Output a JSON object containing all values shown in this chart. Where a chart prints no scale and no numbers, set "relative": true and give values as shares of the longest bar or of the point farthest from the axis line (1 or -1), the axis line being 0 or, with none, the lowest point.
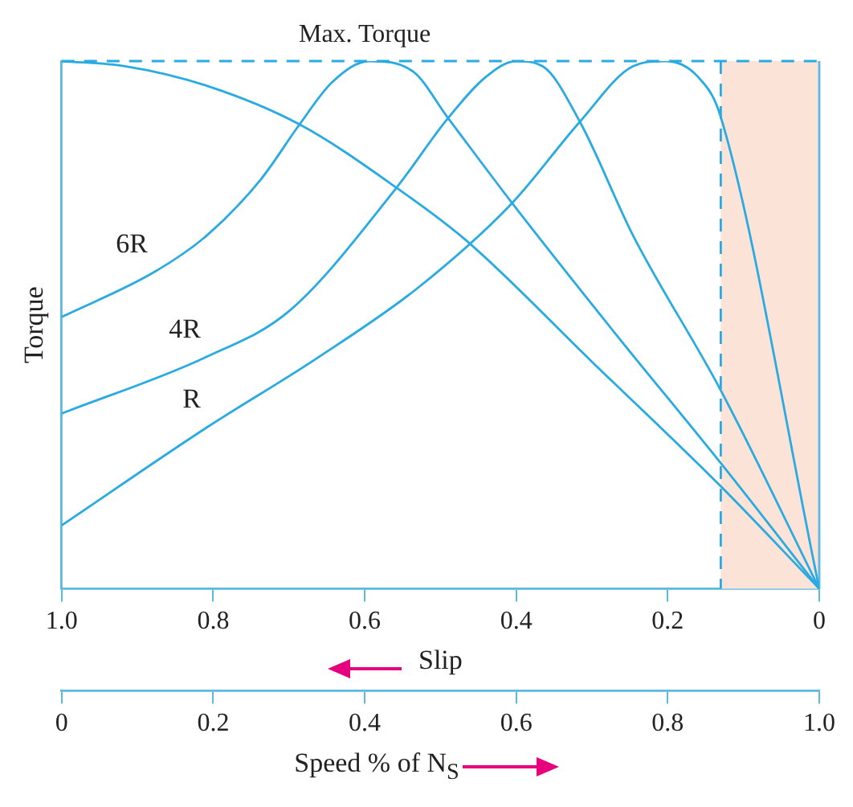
{
  "chart_data": {
    "type": "line",
    "relative": true,
    "ylabel": "Torque",
    "xlabel": "Slip",
    "x2label": "Speed % of N$_{S}$",
    "xlim": [
      1.0,
      0
    ],
    "xticks": [
      {
        "value": 1.0,
        "label": "1.0"
      },
      0.8,
      0.6,
      0.4,
      0.2,
      0
    ],
    "x2lim": [
      0,
      1.0
    ],
    "x2ticks": [
      0,
      0.2,
      0.4,
      0.6,
      0.8,
      {
        "value": 1.0,
        "label": "1.0"
      }
    ],
    "grid": false,
    "legend": false,
    "marker": "none",
    "line_style": "solid",
    "ref_lines": [
      {
        "axis": "y",
        "value": 1,
        "label": "Max. Torque",
        "color": "#29abe2",
        "line_style": "dashed"
      },
      {
        "axis": "x",
        "value": 0.13,
        "label": null,
        "color": "#29abe2",
        "line_style": "dashed"
      }
    ],
    "bands": [
      {
        "axis": "x",
        "from": 0.13,
        "to": 0,
        "label": null,
        "color": "#fbe3d8"
      }
    ],
    "series": [
      {
        "color": "#29abe2",
        "x": [
          1.0,
          0.915,
          0.808,
          0.686,
          0.558,
          0.466,
          0.3,
          0.13,
          0
        ],
        "values": [
          1,
          0.99,
          0.953,
          0.88,
          0.76,
          0.66,
          0.43,
          0.194,
          0
        ]
      },
      {
        "name": "6R",
        "color": "#29abe2",
        "x": [
          1.0,
          0.878,
          0.808,
          0.737,
          0.686,
          0.643,
          0.594,
          0.536,
          0.491,
          0.406,
          0.27,
          0.13,
          0
        ],
        "values": [
          0.515,
          0.6,
          0.67,
          0.776,
          0.88,
          0.96,
          1.0,
          0.98,
          0.894,
          0.732,
          0.485,
          0.238,
          0
        ]
      },
      {
        "name": "4R",
        "color": "#29abe2",
        "x": [
          1.0,
          0.808,
          0.7,
          0.558,
          0.491,
          0.44,
          0.4,
          0.365,
          0.316,
          0.246,
          0.13,
          0
        ],
        "values": [
          0.332,
          0.44,
          0.526,
          0.76,
          0.89,
          0.97,
          1.0,
          0.99,
          0.885,
          0.67,
          0.376,
          0
        ]
      },
      {
        "name": "R",
        "color": "#29abe2",
        "x": [
          1.0,
          0.808,
          0.665,
          0.53,
          0.406,
          0.316,
          0.246,
          0.203,
          0.16,
          0.13,
          0
        ],
        "values": [
          0.12,
          0.306,
          0.435,
          0.57,
          0.73,
          0.885,
          0.99,
          1.0,
          0.97,
          0.894,
          0
        ]
      }
    ]
  }
}
